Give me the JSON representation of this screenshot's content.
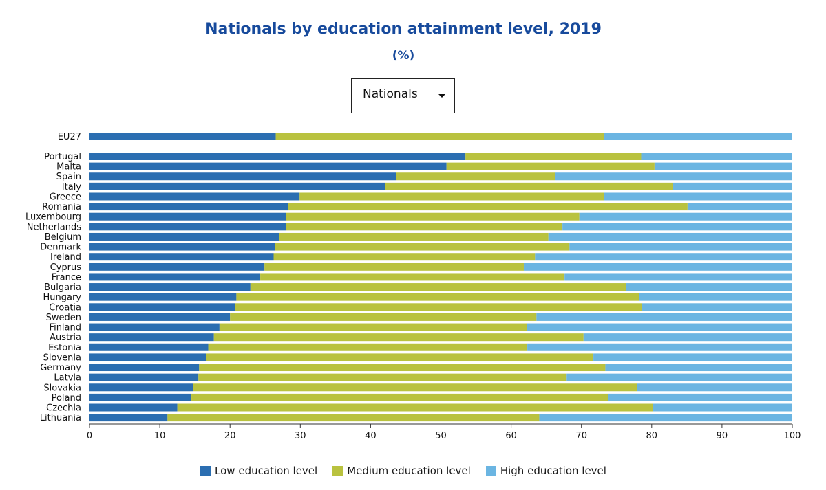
{
  "header": {
    "title": "Nationals by education attainment level, 2019",
    "subtitle": "(%)"
  },
  "selector": {
    "value": "Nationals",
    "icon": "chevron-down-icon"
  },
  "colors": {
    "low": "#2b6eb1",
    "medium": "#b9c23f",
    "high": "#6bb5e2"
  },
  "chart_data": {
    "type": "bar",
    "orientation": "horizontal",
    "stacked": true,
    "title": "Nationals by education attainment level, 2019",
    "subtitle": "(%)",
    "xlim": [
      0,
      100
    ],
    "x_ticks": [
      0,
      10,
      20,
      30,
      40,
      50,
      60,
      70,
      80,
      90,
      100
    ],
    "grid": false,
    "legend_position": "bottom",
    "categories": [
      "EU27",
      "Portugal",
      "Malta",
      "Spain",
      "Italy",
      "Greece",
      "Romania",
      "Luxembourg",
      "Netherlands",
      "Belgium",
      "Denmark",
      "Ireland",
      "Cyprus",
      "France",
      "Bulgaria",
      "Hungary",
      "Croatia",
      "Sweden",
      "Finland",
      "Austria",
      "Estonia",
      "Slovenia",
      "Germany",
      "Latvia",
      "Slovakia",
      "Poland",
      "Czechia",
      "Lithuania"
    ],
    "series": [
      {
        "name": "Low education level",
        "color": "#2b6eb1",
        "values": [
          26.5,
          53.5,
          50.8,
          43.6,
          42.1,
          29.9,
          28.3,
          28.0,
          28.0,
          27.0,
          26.4,
          26.2,
          24.9,
          24.3,
          22.9,
          20.9,
          20.7,
          20.0,
          18.5,
          17.7,
          16.9,
          16.6,
          15.6,
          15.5,
          14.7,
          14.5,
          12.5,
          11.1
        ]
      },
      {
        "name": "Medium education level",
        "color": "#b9c23f",
        "values": [
          46.7,
          25.0,
          29.6,
          22.7,
          40.9,
          43.3,
          56.8,
          41.7,
          39.3,
          38.3,
          41.9,
          37.2,
          36.9,
          43.3,
          53.4,
          57.3,
          57.9,
          43.6,
          43.7,
          52.6,
          45.4,
          55.1,
          57.8,
          52.4,
          63.2,
          59.3,
          67.7,
          52.9
        ]
      },
      {
        "name": "High education level",
        "color": "#6bb5e2",
        "values": [
          26.8,
          21.5,
          19.6,
          33.7,
          17.0,
          26.8,
          14.9,
          30.3,
          32.7,
          34.7,
          31.7,
          36.6,
          38.2,
          32.4,
          23.7,
          21.8,
          21.4,
          36.4,
          37.8,
          29.7,
          37.7,
          28.3,
          26.6,
          32.1,
          22.1,
          26.2,
          19.8,
          36.0
        ]
      }
    ]
  }
}
